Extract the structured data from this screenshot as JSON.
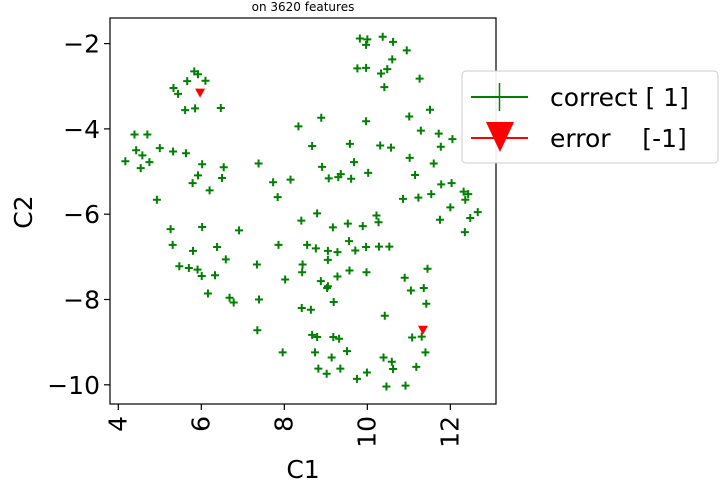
{
  "chart_data": {
    "type": "scatter",
    "title": "on 3620 features",
    "xlabel": "C1",
    "ylabel": "C2",
    "xlim": [
      3.8,
      13.1
    ],
    "ylim": [
      -10.45,
      -1.4
    ],
    "xticks": [
      4,
      6,
      8,
      10,
      12
    ],
    "yticks": [
      -2,
      -4,
      -6,
      -8,
      -10
    ],
    "xtick_labels": [
      "4",
      "6",
      "8",
      "10",
      "12"
    ],
    "ytick_labels": [
      "−2",
      "−4",
      "−6",
      "−8",
      "−10"
    ],
    "grid": false,
    "legend_position": "right",
    "series": [
      {
        "name": "correct [ 1]",
        "marker": "plus",
        "color": "#008000",
        "points": [
          [
            9.82,
            -1.88
          ],
          [
            10.0,
            -1.9
          ],
          [
            10.37,
            -1.84
          ],
          [
            9.97,
            -2.03
          ],
          [
            10.62,
            -1.96
          ],
          [
            10.95,
            -2.16
          ],
          [
            10.6,
            -2.37
          ],
          [
            9.76,
            -2.58
          ],
          [
            9.97,
            -2.57
          ],
          [
            10.33,
            -2.7
          ],
          [
            10.48,
            -2.6
          ],
          [
            10.41,
            -3.02
          ],
          [
            11.26,
            -2.82
          ],
          [
            5.83,
            -2.65
          ],
          [
            5.92,
            -2.72
          ],
          [
            5.66,
            -2.88
          ],
          [
            6.1,
            -2.87
          ],
          [
            5.33,
            -3.04
          ],
          [
            5.44,
            -3.18
          ],
          [
            5.61,
            -3.56
          ],
          [
            5.85,
            -3.52
          ],
          [
            6.47,
            -3.51
          ],
          [
            4.39,
            -4.13
          ],
          [
            4.7,
            -4.13
          ],
          [
            4.43,
            -4.5
          ],
          [
            4.58,
            -4.62
          ],
          [
            4.75,
            -4.78
          ],
          [
            4.17,
            -4.76
          ],
          [
            4.54,
            -4.92
          ],
          [
            5.0,
            -4.45
          ],
          [
            5.32,
            -4.53
          ],
          [
            5.63,
            -4.57
          ],
          [
            6.02,
            -4.83
          ],
          [
            5.92,
            -5.09
          ],
          [
            5.79,
            -5.27
          ],
          [
            6.2,
            -5.44
          ],
          [
            6.5,
            -5.15
          ],
          [
            6.54,
            -4.9
          ],
          [
            4.93,
            -5.66
          ],
          [
            7.38,
            -4.81
          ],
          [
            7.73,
            -5.25
          ],
          [
            7.84,
            -5.6
          ],
          [
            8.15,
            -5.19
          ],
          [
            8.34,
            -3.94
          ],
          [
            8.89,
            -3.74
          ],
          [
            8.67,
            -4.4
          ],
          [
            8.91,
            -4.89
          ],
          [
            9.07,
            -5.16
          ],
          [
            9.3,
            -5.13
          ],
          [
            9.36,
            -5.06
          ],
          [
            9.68,
            -4.78
          ],
          [
            9.58,
            -4.35
          ],
          [
            9.97,
            -3.82
          ],
          [
            10.31,
            -4.39
          ],
          [
            10.57,
            -4.44
          ],
          [
            10.02,
            -5.03
          ],
          [
            9.61,
            -5.17
          ],
          [
            11.01,
            -3.71
          ],
          [
            11.51,
            -3.55
          ],
          [
            11.29,
            -4.04
          ],
          [
            11.72,
            -4.11
          ],
          [
            11.77,
            -4.42
          ],
          [
            12.05,
            -4.24
          ],
          [
            11.02,
            -4.68
          ],
          [
            11.15,
            -5.08
          ],
          [
            11.6,
            -4.81
          ],
          [
            11.54,
            -5.53
          ],
          [
            11.78,
            -5.3
          ],
          [
            12.03,
            -5.27
          ],
          [
            10.86,
            -5.64
          ],
          [
            11.23,
            -5.61
          ],
          [
            12.32,
            -5.47
          ],
          [
            12.43,
            -5.53
          ],
          [
            12.0,
            -5.84
          ],
          [
            12.36,
            -5.66
          ],
          [
            12.66,
            -5.95
          ],
          [
            12.48,
            -6.09
          ],
          [
            12.35,
            -6.42
          ],
          [
            11.75,
            -6.13
          ],
          [
            8.41,
            -6.15
          ],
          [
            8.79,
            -5.98
          ],
          [
            9.17,
            -6.31
          ],
          [
            9.53,
            -6.22
          ],
          [
            9.89,
            -6.28
          ],
          [
            10.27,
            -6.19
          ],
          [
            10.22,
            -6.03
          ],
          [
            9.56,
            -6.63
          ],
          [
            9.28,
            -6.89
          ],
          [
            9.71,
            -6.85
          ],
          [
            9.97,
            -6.77
          ],
          [
            10.28,
            -6.76
          ],
          [
            10.53,
            -6.76
          ],
          [
            8.55,
            -6.72
          ],
          [
            8.76,
            -6.8
          ],
          [
            9.05,
            -6.86
          ],
          [
            9.05,
            -7.07
          ],
          [
            8.44,
            -7.18
          ],
          [
            5.26,
            -6.35
          ],
          [
            5.31,
            -6.72
          ],
          [
            5.47,
            -7.22
          ],
          [
            5.8,
            -6.86
          ],
          [
            5.7,
            -7.26
          ],
          [
            5.91,
            -7.3
          ],
          [
            6.02,
            -6.3
          ],
          [
            6.38,
            -6.77
          ],
          [
            6.59,
            -7.06
          ],
          [
            6.91,
            -6.38
          ],
          [
            7.34,
            -7.18
          ],
          [
            7.86,
            -6.72
          ],
          [
            6.33,
            -7.43
          ],
          [
            6.01,
            -7.45
          ],
          [
            6.16,
            -7.86
          ],
          [
            6.68,
            -7.96
          ],
          [
            6.78,
            -8.07
          ],
          [
            7.39,
            -8.0
          ],
          [
            7.35,
            -8.72
          ],
          [
            8.02,
            -7.53
          ],
          [
            8.43,
            -7.36
          ],
          [
            8.88,
            -7.57
          ],
          [
            9.05,
            -7.69
          ],
          [
            9.28,
            -7.46
          ],
          [
            9.57,
            -7.32
          ],
          [
            9.98,
            -7.36
          ],
          [
            10.9,
            -7.49
          ],
          [
            11.45,
            -7.28
          ],
          [
            11.05,
            -7.79
          ],
          [
            11.36,
            -7.73
          ],
          [
            11.42,
            -8.1
          ],
          [
            9.03,
            -7.73
          ],
          [
            9.19,
            -8.06
          ],
          [
            10.42,
            -8.38
          ],
          [
            8.42,
            -8.2
          ],
          [
            8.64,
            -8.24
          ],
          [
            8.67,
            -8.83
          ],
          [
            8.79,
            -8.88
          ],
          [
            9.18,
            -8.88
          ],
          [
            9.32,
            -8.92
          ],
          [
            7.96,
            -9.24
          ],
          [
            8.74,
            -9.24
          ],
          [
            9.14,
            -9.36
          ],
          [
            9.51,
            -9.21
          ],
          [
            8.82,
            -9.62
          ],
          [
            9.02,
            -9.74
          ],
          [
            9.35,
            -9.62
          ],
          [
            9.75,
            -9.86
          ],
          [
            9.99,
            -9.71
          ],
          [
            10.39,
            -9.36
          ],
          [
            10.59,
            -9.46
          ],
          [
            10.62,
            -9.63
          ],
          [
            10.92,
            -10.02
          ],
          [
            10.46,
            -10.04
          ],
          [
            11.08,
            -8.89
          ],
          [
            11.31,
            -8.87
          ],
          [
            11.4,
            -9.24
          ],
          [
            11.18,
            -9.58
          ]
        ]
      },
      {
        "name": "error    [-1]",
        "marker": "triangle_down",
        "color": "#ff0000",
        "points": [
          [
            5.97,
            -3.15
          ],
          [
            11.34,
            -8.71
          ]
        ]
      }
    ]
  }
}
